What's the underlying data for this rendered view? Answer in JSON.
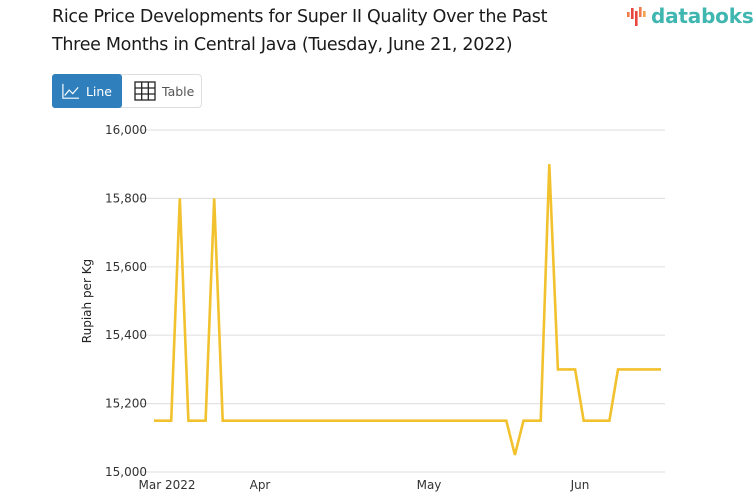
{
  "header": {
    "title": "Rice Price Developments for Super II Quality Over the Past Three Months in Central Java (Tuesday, June 21, 2022)",
    "logo_text": "databoks",
    "brand_color": "#3fb7b0"
  },
  "view_toggle": {
    "options": [
      {
        "label": "Line",
        "icon": "line-chart-icon",
        "active": true
      },
      {
        "label": "Table",
        "icon": "table-grid-icon",
        "active": false
      }
    ],
    "active_color": "#2f7fbd"
  },
  "chart_data": {
    "type": "line",
    "title": "Rice Price Developments for Super II Quality Over the Past Three Months in Central Java (Tuesday, June 21, 2022)",
    "xlabel": "",
    "ylabel": "Rupiah per Kg",
    "ylim": [
      15000,
      16000
    ],
    "yticks": [
      15000,
      15200,
      15400,
      15600,
      15800,
      16000
    ],
    "ytick_labels": [
      "15,000",
      "15,200",
      "15,400",
      "15,600",
      "15,800",
      "16,000"
    ],
    "xtick_labels": [
      "Mar 2022",
      "Apr",
      "May",
      "Jun"
    ],
    "grid": true,
    "legend": "none",
    "line_color": "#f2c12e",
    "series": [
      {
        "name": "Super II Quality",
        "values": [
          15150,
          15150,
          15150,
          15800,
          15150,
          15150,
          15150,
          15800,
          15150,
          15150,
          15150,
          15150,
          15150,
          15150,
          15150,
          15150,
          15150,
          15150,
          15150,
          15150,
          15150,
          15150,
          15150,
          15150,
          15150,
          15150,
          15150,
          15150,
          15150,
          15150,
          15150,
          15150,
          15150,
          15150,
          15150,
          15150,
          15150,
          15150,
          15150,
          15150,
          15150,
          15150,
          15050,
          15150,
          15150,
          15150,
          15900,
          15300,
          15300,
          15300,
          15150,
          15150,
          15150,
          15150,
          15300,
          15300,
          15300,
          15300,
          15300,
          15300
        ]
      }
    ]
  }
}
